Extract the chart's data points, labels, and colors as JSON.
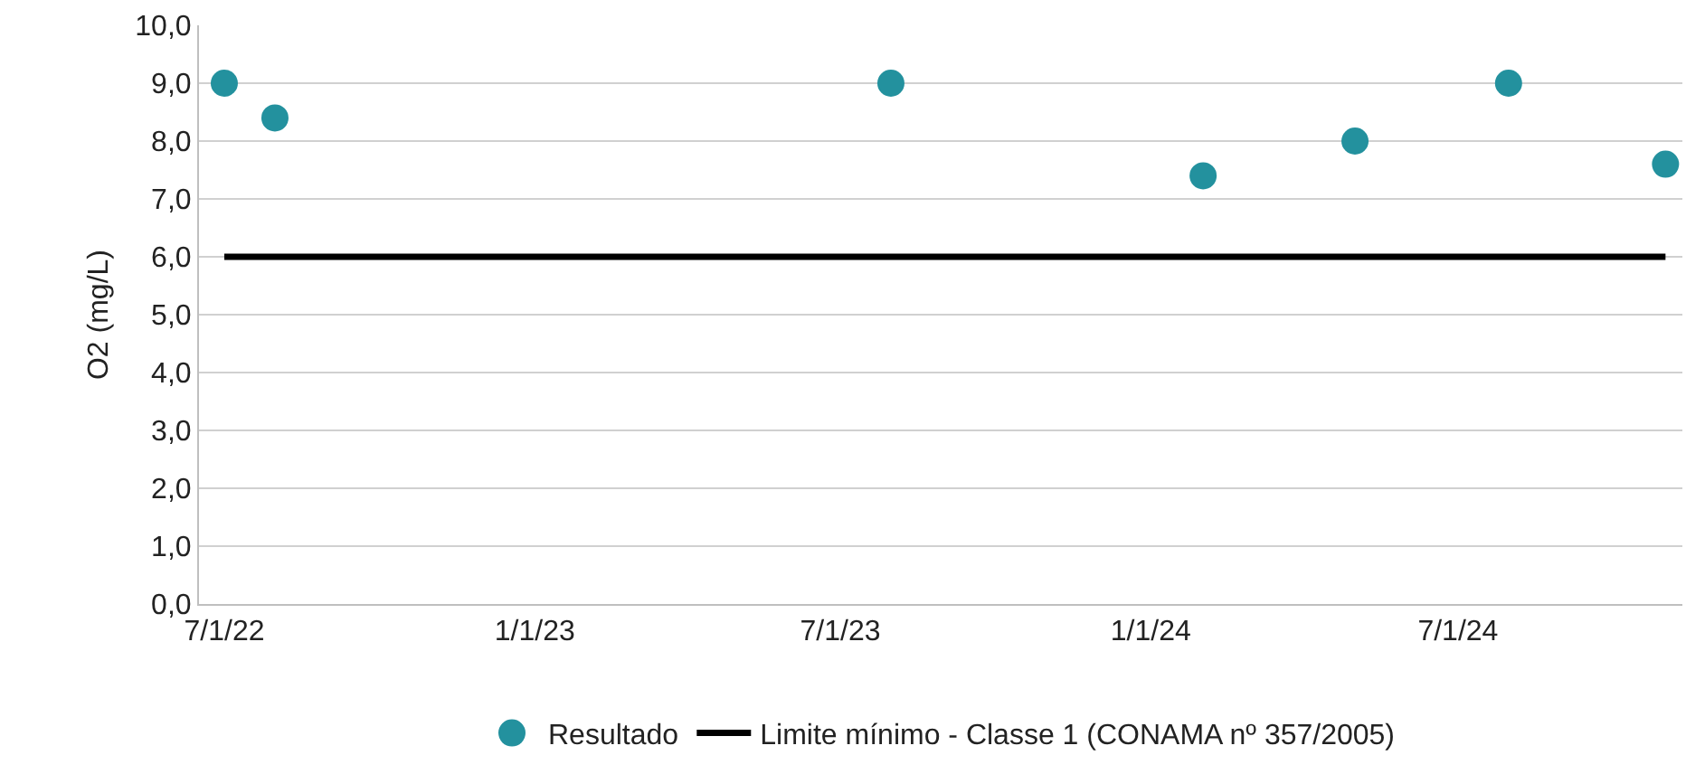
{
  "chart_data": {
    "type": "scatter",
    "ylabel": "O2 (mg/L)",
    "series": [
      {
        "name": "Resultado",
        "color": "#23919e",
        "marker": "circle",
        "x": [
          "2022-07-01",
          "2022-07-31",
          "2023-07-31",
          "2024-02-01",
          "2024-05-01",
          "2024-07-31",
          "2024-11-01"
        ],
        "values": [
          9.0,
          8.4,
          9.0,
          7.4,
          8.0,
          9.0,
          7.6
        ]
      },
      {
        "name": "Limite mínimo - Classe 1 (CONAMA nº 357/2005)",
        "type": "line",
        "color": "#000000",
        "marker": "none",
        "line_style": "solid",
        "x": [
          "2022-07-01",
          "2024-11-01"
        ],
        "values": [
          6.0,
          6.0
        ]
      }
    ],
    "xlim": [
      "2022-06-16",
      "2024-11-11"
    ],
    "xticks": [
      {
        "value": "2022-07-01",
        "label": "7/1/22"
      },
      {
        "value": "2023-01-01",
        "label": "1/1/23"
      },
      {
        "value": "2023-07-01",
        "label": "7/1/23"
      },
      {
        "value": "2024-01-01",
        "label": "1/1/24"
      },
      {
        "value": "2024-07-01",
        "label": "7/1/24"
      }
    ],
    "ylim": [
      0,
      10
    ],
    "yticks": [
      {
        "value": 0,
        "label": "0,0"
      },
      {
        "value": 1,
        "label": "1,0"
      },
      {
        "value": 2,
        "label": "2,0"
      },
      {
        "value": 3,
        "label": "3,0"
      },
      {
        "value": 4,
        "label": "4,0"
      },
      {
        "value": 5,
        "label": "5,0"
      },
      {
        "value": 6,
        "label": "6,0"
      },
      {
        "value": 7,
        "label": "7,0"
      },
      {
        "value": 8,
        "label": "8,0"
      },
      {
        "value": 9,
        "label": "9,0"
      },
      {
        "value": 10,
        "label": "10,0"
      }
    ],
    "grid": "y",
    "legend": "bottom"
  }
}
